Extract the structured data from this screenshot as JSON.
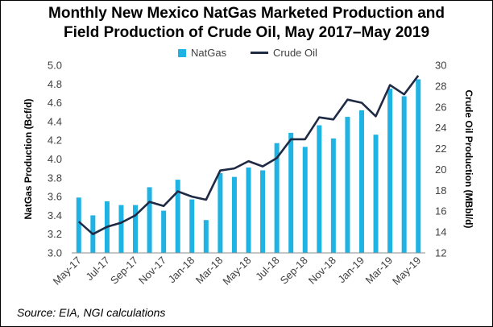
{
  "title_line1": "Monthly New Mexico NatGas Marketed Production and",
  "title_line2": "Field Production of Crude Oil, May 2017–May 2019",
  "source": "Source: EIA, NGI calculations",
  "chart_data": {
    "type": "bar",
    "title": "Monthly New Mexico NatGas Marketed Production and Field Production of Crude Oil, May 2017–May 2019",
    "categories": [
      "May-17",
      "Jun-17",
      "Jul-17",
      "Aug-17",
      "Sep-17",
      "Oct-17",
      "Nov-17",
      "Dec-17",
      "Jan-18",
      "Feb-18",
      "Mar-18",
      "Apr-18",
      "May-18",
      "Jun-18",
      "Jul-18",
      "Aug-18",
      "Sep-18",
      "Oct-18",
      "Nov-18",
      "Dec-18",
      "Jan-19",
      "Feb-19",
      "Mar-19",
      "Apr-19",
      "May-19"
    ],
    "tick_labels": [
      "May-17",
      "Jul-17",
      "Sep-17",
      "Nov-17",
      "Jan-18",
      "Mar-18",
      "May-18",
      "Jul-18",
      "Sep-18",
      "Nov-18",
      "Jan-19",
      "Mar-19",
      "May-19"
    ],
    "series": [
      {
        "name": "NatGas",
        "type": "bar",
        "axis": "left",
        "color": "#1FB3E4",
        "values": [
          3.59,
          3.4,
          3.55,
          3.51,
          3.51,
          3.7,
          3.45,
          3.78,
          3.57,
          3.35,
          3.85,
          3.81,
          3.91,
          3.88,
          4.17,
          4.28,
          4.13,
          4.36,
          4.22,
          4.45,
          4.52,
          4.26,
          4.75,
          4.67,
          4.85
        ]
      },
      {
        "name": "Crude Oil",
        "type": "line",
        "axis": "right",
        "color": "#1F2A44",
        "values": [
          15.0,
          13.8,
          14.5,
          14.9,
          15.6,
          16.9,
          16.5,
          17.9,
          17.4,
          17.1,
          19.9,
          20.1,
          20.8,
          20.3,
          21.1,
          22.9,
          22.9,
          25.0,
          24.8,
          26.7,
          26.4,
          25.1,
          28.1,
          27.2,
          29.0
        ]
      }
    ],
    "ylabel": "NatGas Production (Bcf/d)",
    "ylim": [
      3.0,
      5.0
    ],
    "yticks": [
      "3.0",
      "3.2",
      "3.4",
      "3.6",
      "3.8",
      "4.0",
      "4.2",
      "4.4",
      "4.6",
      "4.8",
      "5.0"
    ],
    "y2label": "Crude Oil Production (MBbl/d)",
    "y2lim": [
      12,
      30
    ],
    "y2ticks": [
      "12",
      "14",
      "16",
      "18",
      "20",
      "22",
      "24",
      "26",
      "28",
      "30"
    ],
    "grid": false,
    "legend_position": "top"
  }
}
